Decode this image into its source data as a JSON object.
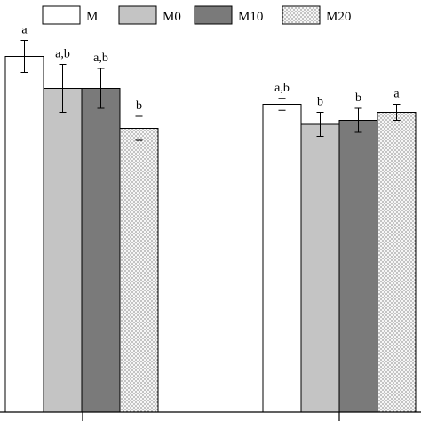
{
  "chart_data": {
    "type": "bar",
    "title": "",
    "xlabel": "",
    "ylabel": "",
    "ylim": [
      0,
      100
    ],
    "categories": [
      "",
      ""
    ],
    "legend_position": "top",
    "grid": false,
    "series": [
      {
        "name": "M",
        "fill": "#ffffff",
        "pattern": "none",
        "values": [
          89,
          77
        ],
        "errors": [
          4,
          1.5
        ],
        "labels": [
          "a",
          "a,b"
        ]
      },
      {
        "name": "M0",
        "fill": "#c4c4c4",
        "pattern": "none",
        "values": [
          81,
          72
        ],
        "errors": [
          6,
          3
        ],
        "labels": [
          "a,b",
          "b"
        ]
      },
      {
        "name": "M10",
        "fill": "#7a7a7a",
        "pattern": "none",
        "values": [
          81,
          73
        ],
        "errors": [
          5,
          3
        ],
        "labels": [
          "a,b",
          "b"
        ]
      },
      {
        "name": "M20",
        "fill": "#f4f4f4",
        "pattern": "dots",
        "values": [
          71,
          75
        ],
        "errors": [
          3,
          2
        ],
        "labels": [
          "b",
          "a"
        ]
      }
    ]
  }
}
